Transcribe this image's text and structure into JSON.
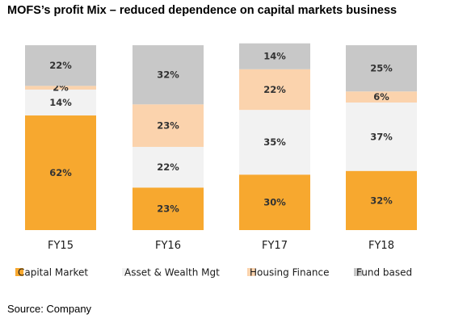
{
  "title": "MOFS’s profit Mix – reduced dependence on capital markets business",
  "source": "Source: Company",
  "colors": {
    "Capital Market": "#f7a82f",
    "Asset & Wealth Mgt": "#f2f2f2",
    "Housing Finance": "#fbd3ad",
    "Fund based": "#c8c8c8"
  },
  "chart_data": {
    "type": "bar",
    "stacked": true,
    "categories": [
      "FY15",
      "FY16",
      "FY17",
      "FY18"
    ],
    "series": [
      {
        "name": "Capital Market",
        "values": [
          62,
          23,
          30,
          32
        ],
        "labels": [
          "62%",
          "23%",
          "30%",
          "32%"
        ]
      },
      {
        "name": "Asset & Wealth Mgt",
        "values": [
          14,
          22,
          35,
          37
        ],
        "labels": [
          "14%",
          "22%",
          "35%",
          "37%"
        ]
      },
      {
        "name": "Housing Finance",
        "values": [
          2,
          23,
          22,
          6
        ],
        "labels": [
          "2%",
          "23%",
          "22%",
          "6%"
        ]
      },
      {
        "name": "Fund based",
        "values": [
          22,
          32,
          14,
          25
        ],
        "labels": [
          "22%",
          "32%",
          "14%",
          "25%"
        ]
      }
    ],
    "ylim": [
      0,
      100
    ],
    "grid": false,
    "legend_position": "bottom"
  }
}
